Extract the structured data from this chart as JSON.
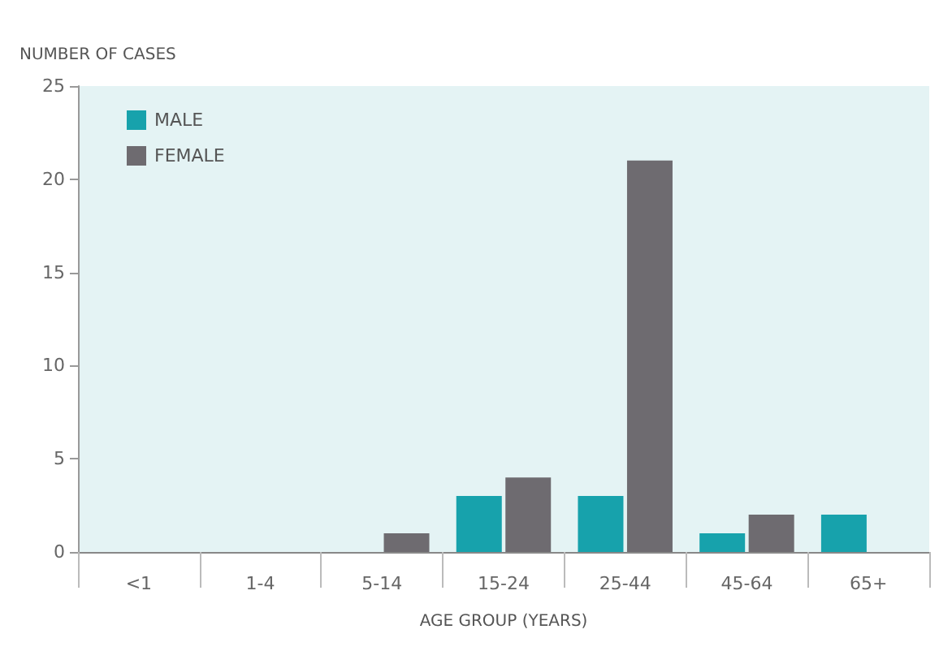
{
  "chart_data": {
    "type": "bar",
    "ylabel": "NUMBER OF CASES",
    "xlabel": "AGE GROUP (YEARS)",
    "categories": [
      "<1",
      "1-4",
      "5-14",
      "15-24",
      "25-44",
      "45-64",
      "65+"
    ],
    "series": [
      {
        "name": "MALE",
        "color": "#17a2ac",
        "values": [
          0,
          0,
          0,
          3,
          3,
          1,
          2
        ]
      },
      {
        "name": "FEMALE",
        "color": "#6e6b70",
        "values": [
          0,
          0,
          1,
          4,
          21,
          2,
          0
        ]
      }
    ],
    "ylim": [
      0,
      25
    ],
    "yticks": [
      0,
      5,
      10,
      15,
      20,
      25
    ],
    "grid": false,
    "legend": "top left"
  }
}
